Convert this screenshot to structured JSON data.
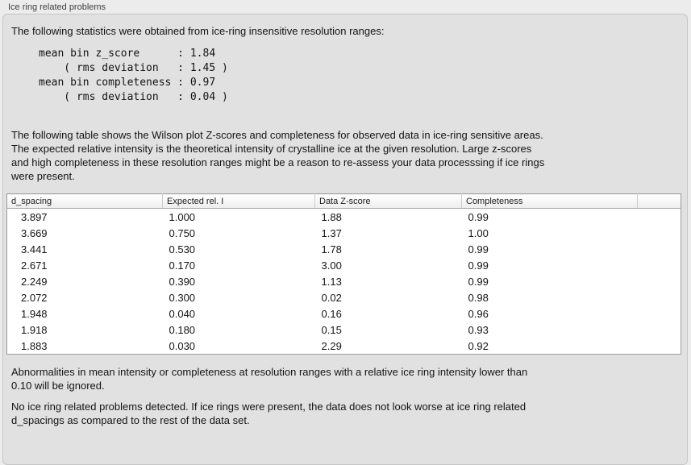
{
  "groupbox": {
    "title": "Ice ring related problems"
  },
  "intro": {
    "text": "The following statistics were obtained from ice-ring insensitive resolution ranges:"
  },
  "stats": {
    "lines": [
      "mean bin z_score      : 1.84",
      "    ( rms deviation   : 1.45 )",
      "mean bin completeness : 0.97",
      "    ( rms deviation   : 0.04 )"
    ]
  },
  "description": {
    "lines": [
      "The following table shows the Wilson plot Z-scores and completeness for observed data in ice-ring sensitive areas.",
      "The expected relative intensity is the theoretical intensity of crystalline ice at the given resolution. Large z-scores",
      "and high completeness in these resolution ranges might be a reason to re-assess your data processsing if ice rings",
      "were present."
    ]
  },
  "table": {
    "columns": [
      "d_spacing",
      "Expected rel. I",
      "Data Z-score",
      "Completeness",
      ""
    ],
    "rows": [
      [
        "3.897",
        "1.000",
        "1.88",
        "0.99"
      ],
      [
        "3.669",
        "0.750",
        "1.37",
        "1.00"
      ],
      [
        "3.441",
        "0.530",
        "1.78",
        "0.99"
      ],
      [
        "2.671",
        "0.170",
        "3.00",
        "0.99"
      ],
      [
        "2.249",
        "0.390",
        "1.13",
        "0.99"
      ],
      [
        "2.072",
        "0.300",
        "0.02",
        "0.98"
      ],
      [
        "1.948",
        "0.040",
        "0.16",
        "0.96"
      ],
      [
        "1.918",
        "0.180",
        "0.15",
        "0.93"
      ],
      [
        "1.883",
        "0.030",
        "2.29",
        "0.92"
      ]
    ]
  },
  "note_ignore": {
    "lines": [
      "Abnormalities in mean intensity or completeness at resolution ranges with a relative ice ring intensity lower than",
      "0.10 will be ignored."
    ]
  },
  "conclusion": {
    "lines": [
      "No ice ring related problems detected. If ice rings were present, the data does not look worse at ice ring related",
      "d_spacings as compared to the rest of the data set."
    ]
  },
  "colors": {
    "page_bg": "#ececec",
    "panel_bg": "#e1e1e1",
    "panel_border": "#c6c6c6",
    "table_bg": "#ffffff",
    "table_border": "#9b9b9b"
  }
}
